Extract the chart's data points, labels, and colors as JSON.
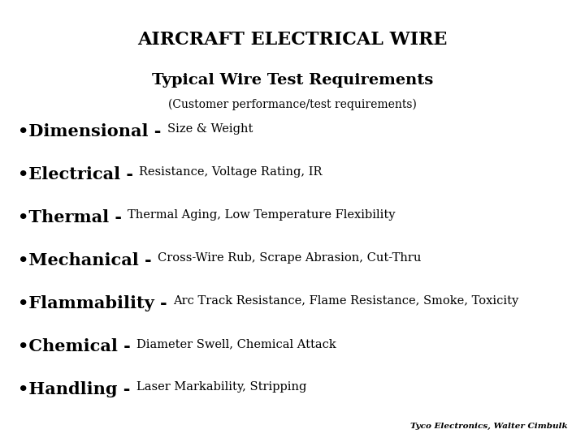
{
  "title": "AIRCRAFT ELECTRICAL WIRE",
  "subtitle": "Typical Wire Test Requirements",
  "subtitle2": "(Customer performance/test requirements)",
  "background_color": "#ffffff",
  "text_color": "#000000",
  "title_fontsize": 16,
  "subtitle_fontsize": 14,
  "subtitle2_fontsize": 10,
  "bullet_fontsize": 15,
  "detail_fontsize": 10.5,
  "footer": "Tyco Electronics, Walter Cimbulk",
  "footer_fontsize": 7.5,
  "items": [
    {
      "bullet_bold": "•Dimensional - ",
      "detail": "Size & Weight"
    },
    {
      "bullet_bold": "•Electrical - ",
      "detail": "Resistance, Voltage Rating, IR"
    },
    {
      "bullet_bold": "•Thermal - ",
      "detail": "Thermal Aging, Low Temperature Flexibility"
    },
    {
      "bullet_bold": "•Mechanical - ",
      "detail": "Cross-Wire Rub, Scrape Abrasion, Cut-Thru"
    },
    {
      "bullet_bold": "•Flammability - ",
      "detail": "Arc Track Resistance, Flame Resistance, Smoke, Toxicity"
    },
    {
      "bullet_bold": "•Chemical - ",
      "detail": "Diameter Swell, Chemical Attack"
    },
    {
      "bullet_bold": "•Handling - ",
      "detail": "Laser Markability, Stripping"
    }
  ]
}
